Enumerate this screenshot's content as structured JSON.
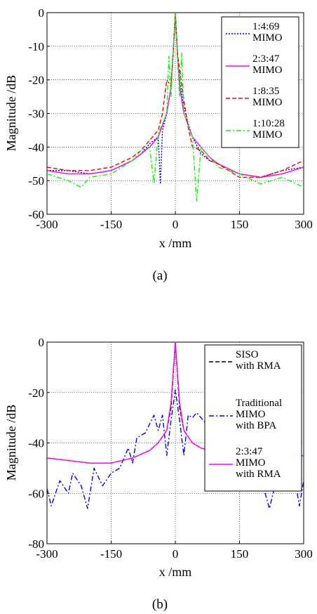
{
  "chart_data": [
    {
      "id": "a",
      "type": "line",
      "caption": "(a)",
      "xlabel": "x /mm",
      "ylabel": "Magnitude /dB",
      "xlim": [
        -300,
        300
      ],
      "ylim": [
        -60,
        0
      ],
      "xticks": [
        -300,
        -150,
        0,
        150,
        300
      ],
      "yticks": [
        0,
        -10,
        -20,
        -30,
        -40,
        -50,
        -60
      ],
      "grid": true,
      "legend_position": "top-right",
      "series": [
        {
          "name": "1:4:69 MIMO",
          "color": "#0000cc",
          "dash": "dotted",
          "x": [
            -300,
            -250,
            -200,
            -150,
            -100,
            -80,
            -60,
            -40,
            -35,
            -30,
            -20,
            -10,
            -5,
            0,
            5,
            10,
            20,
            30,
            40,
            60,
            80,
            100,
            150,
            200,
            250,
            300
          ],
          "y": [
            -47,
            -47,
            -48,
            -47,
            -44,
            -42,
            -39,
            -37,
            -51,
            -35,
            -30,
            -22,
            -12,
            0,
            -12,
            -20,
            -28,
            -33,
            -37,
            -42,
            -44,
            -45,
            -48,
            -49,
            -47,
            -46
          ]
        },
        {
          "name": "2:3:47 MIMO",
          "color": "#ff00ff",
          "dash": "solid",
          "x": [
            -300,
            -250,
            -200,
            -150,
            -100,
            -80,
            -60,
            -40,
            -20,
            -10,
            -5,
            0,
            5,
            10,
            20,
            40,
            60,
            80,
            100,
            150,
            200,
            250,
            300
          ],
          "y": [
            -47,
            -48,
            -48,
            -47,
            -44,
            -42,
            -40,
            -37,
            -30,
            -22,
            -12,
            0,
            -12,
            -22,
            -30,
            -37,
            -40,
            -43,
            -45,
            -48,
            -49,
            -48,
            -46
          ]
        },
        {
          "name": "1:8:35 MIMO",
          "color": "#ff0000",
          "dash": "dashed",
          "x": [
            -300,
            -250,
            -200,
            -150,
            -100,
            -80,
            -60,
            -40,
            -30,
            -20,
            -10,
            -5,
            0,
            5,
            10,
            20,
            30,
            40,
            60,
            80,
            100,
            150,
            200,
            250,
            300
          ],
          "y": [
            -46,
            -47,
            -47,
            -46,
            -43,
            -41,
            -38,
            -35,
            -30,
            -20,
            -22,
            -12,
            0,
            -12,
            -17,
            -26,
            -34,
            -40,
            -41,
            -44,
            -45,
            -49,
            -49,
            -47,
            -44
          ]
        },
        {
          "name": "1:10:28 MIMO",
          "color": "#00ff00",
          "dash": "dashdot",
          "x": [
            -300,
            -250,
            -220,
            -200,
            -150,
            -100,
            -80,
            -60,
            -50,
            -40,
            -20,
            -15,
            -10,
            -5,
            0,
            5,
            10,
            15,
            20,
            40,
            50,
            60,
            80,
            100,
            150,
            200,
            250,
            300
          ],
          "y": [
            -48,
            -50,
            -52,
            -49,
            -48,
            -44,
            -41,
            -40,
            -51,
            -36,
            -30,
            -13,
            -25,
            -12,
            0,
            -13,
            -25,
            -12,
            -30,
            -37,
            -56,
            -40,
            -43,
            -46,
            -48,
            -51,
            -49,
            -52
          ]
        }
      ]
    },
    {
      "id": "b",
      "type": "line",
      "caption": "(b)",
      "xlabel": "x /mm",
      "ylabel": "Magnitude /dB",
      "xlim": [
        -300,
        300
      ],
      "ylim": [
        -80,
        0
      ],
      "xticks": [
        -300,
        -150,
        0,
        150,
        300
      ],
      "yticks": [
        0,
        -20,
        -40,
        -60,
        -80
      ],
      "grid": true,
      "legend_position": "top-right",
      "series": [
        {
          "name": "SISO with RMA",
          "color": "#000000",
          "dash": "dashed",
          "x": [
            -300,
            -250,
            -200,
            -150,
            -100,
            -60,
            -40,
            -20,
            -10,
            0,
            10,
            20,
            40,
            60,
            100,
            150,
            200,
            250,
            300
          ],
          "y": [
            -46,
            -47,
            -48,
            -48,
            -46,
            -43,
            -40,
            -35,
            -26,
            0,
            -26,
            -35,
            -40,
            -42,
            -44,
            -46,
            -47,
            -46,
            -45
          ]
        },
        {
          "name": "Traditional MIMO with BPA",
          "color": "#0000ff",
          "dash": "dashdot",
          "x": [
            -300,
            -290,
            -270,
            -250,
            -240,
            -220,
            -205,
            -190,
            -170,
            -150,
            -130,
            -110,
            -100,
            -90,
            -70,
            -50,
            -40,
            -30,
            -20,
            -10,
            0,
            10,
            20,
            30,
            40,
            50,
            70,
            90,
            110,
            130,
            150,
            170,
            190,
            210,
            220,
            240,
            260,
            280,
            290,
            300
          ],
          "y": [
            -58,
            -65,
            -55,
            -60,
            -52,
            -57,
            -66,
            -50,
            -57,
            -52,
            -50,
            -42,
            -48,
            -38,
            -36,
            -29,
            -35,
            -29,
            -45,
            -31,
            -19,
            -31,
            -45,
            -29,
            -30,
            -28,
            -32,
            -42,
            -50,
            -52,
            -55,
            -52,
            -50,
            -60,
            -66,
            -52,
            -53,
            -55,
            -65,
            -55
          ]
        },
        {
          "name": "2:3:47 MIMO with RMA",
          "color": "#ff00ff",
          "dash": "solid",
          "x": [
            -300,
            -250,
            -200,
            -150,
            -100,
            -60,
            -40,
            -20,
            -10,
            0,
            10,
            20,
            40,
            60,
            100,
            150,
            200,
            250,
            300
          ],
          "y": [
            -46,
            -47,
            -48,
            -48,
            -46,
            -43,
            -40,
            -35,
            -24,
            0,
            -24,
            -35,
            -40,
            -42,
            -44,
            -46,
            -47,
            -46,
            -45
          ]
        }
      ]
    }
  ]
}
